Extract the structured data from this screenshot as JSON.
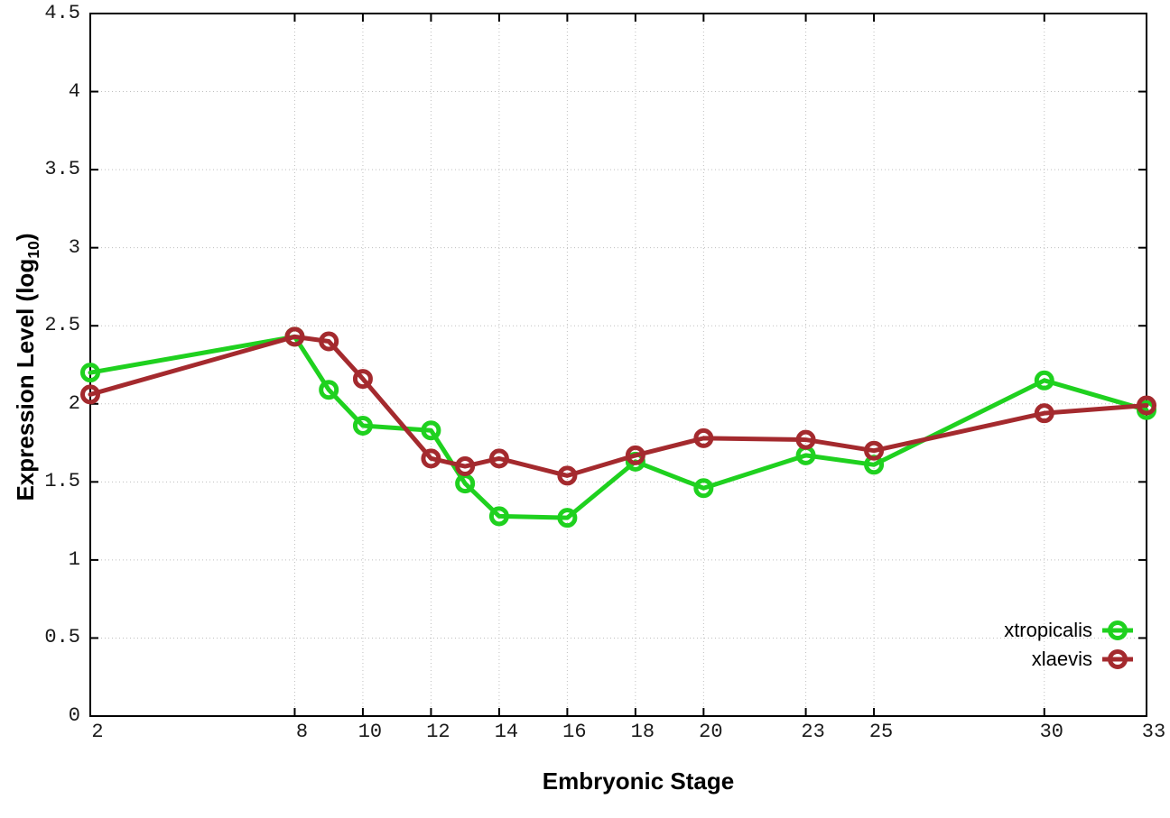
{
  "chart_data": {
    "type": "line",
    "title": "",
    "xlabel": "Embryonic Stage",
    "ylabel_prefix": "Expression Level (log",
    "ylabel_sub": "10",
    "ylabel_suffix": ")",
    "xlim": [
      2,
      33
    ],
    "ylim": [
      0,
      4.5
    ],
    "grid": true,
    "grid_style": "dotted",
    "legend_position": "inside-bottom-right",
    "x_ticks": [
      2,
      8,
      10,
      12,
      14,
      16,
      18,
      20,
      23,
      25,
      30,
      33
    ],
    "x_tick_labels": [
      "2",
      "8",
      "10",
      "12",
      "14",
      "16",
      "18",
      "20",
      "23",
      "25",
      "30",
      "33"
    ],
    "y_ticks": [
      0,
      0.5,
      1,
      1.5,
      2,
      2.5,
      3,
      3.5,
      4,
      4.5
    ],
    "y_tick_labels": [
      "0",
      "0.5",
      "1",
      "1.5",
      "2",
      "2.5",
      "3",
      "3.5",
      "4",
      "4.5"
    ],
    "x": [
      2,
      8,
      9,
      10,
      12,
      13,
      14,
      16,
      18,
      20,
      23,
      25,
      30,
      33
    ],
    "series": [
      {
        "name": "xtropicalis",
        "color": "#1fd11f",
        "marker": "open-circle",
        "values": [
          2.2,
          2.43,
          2.09,
          1.86,
          1.83,
          1.49,
          1.28,
          1.27,
          1.63,
          1.46,
          1.67,
          1.61,
          2.15,
          1.96
        ]
      },
      {
        "name": "xlaevis",
        "color": "#a42a2e",
        "marker": "open-circle",
        "values": [
          2.06,
          2.43,
          2.4,
          2.16,
          1.65,
          1.6,
          1.65,
          1.54,
          1.67,
          1.78,
          1.77,
          1.7,
          1.94,
          1.99
        ]
      }
    ],
    "colors": {
      "background": "#ffffff",
      "border": "#000000",
      "grid": "#bfbfbf",
      "tick_text": "#1a1a1a"
    }
  }
}
